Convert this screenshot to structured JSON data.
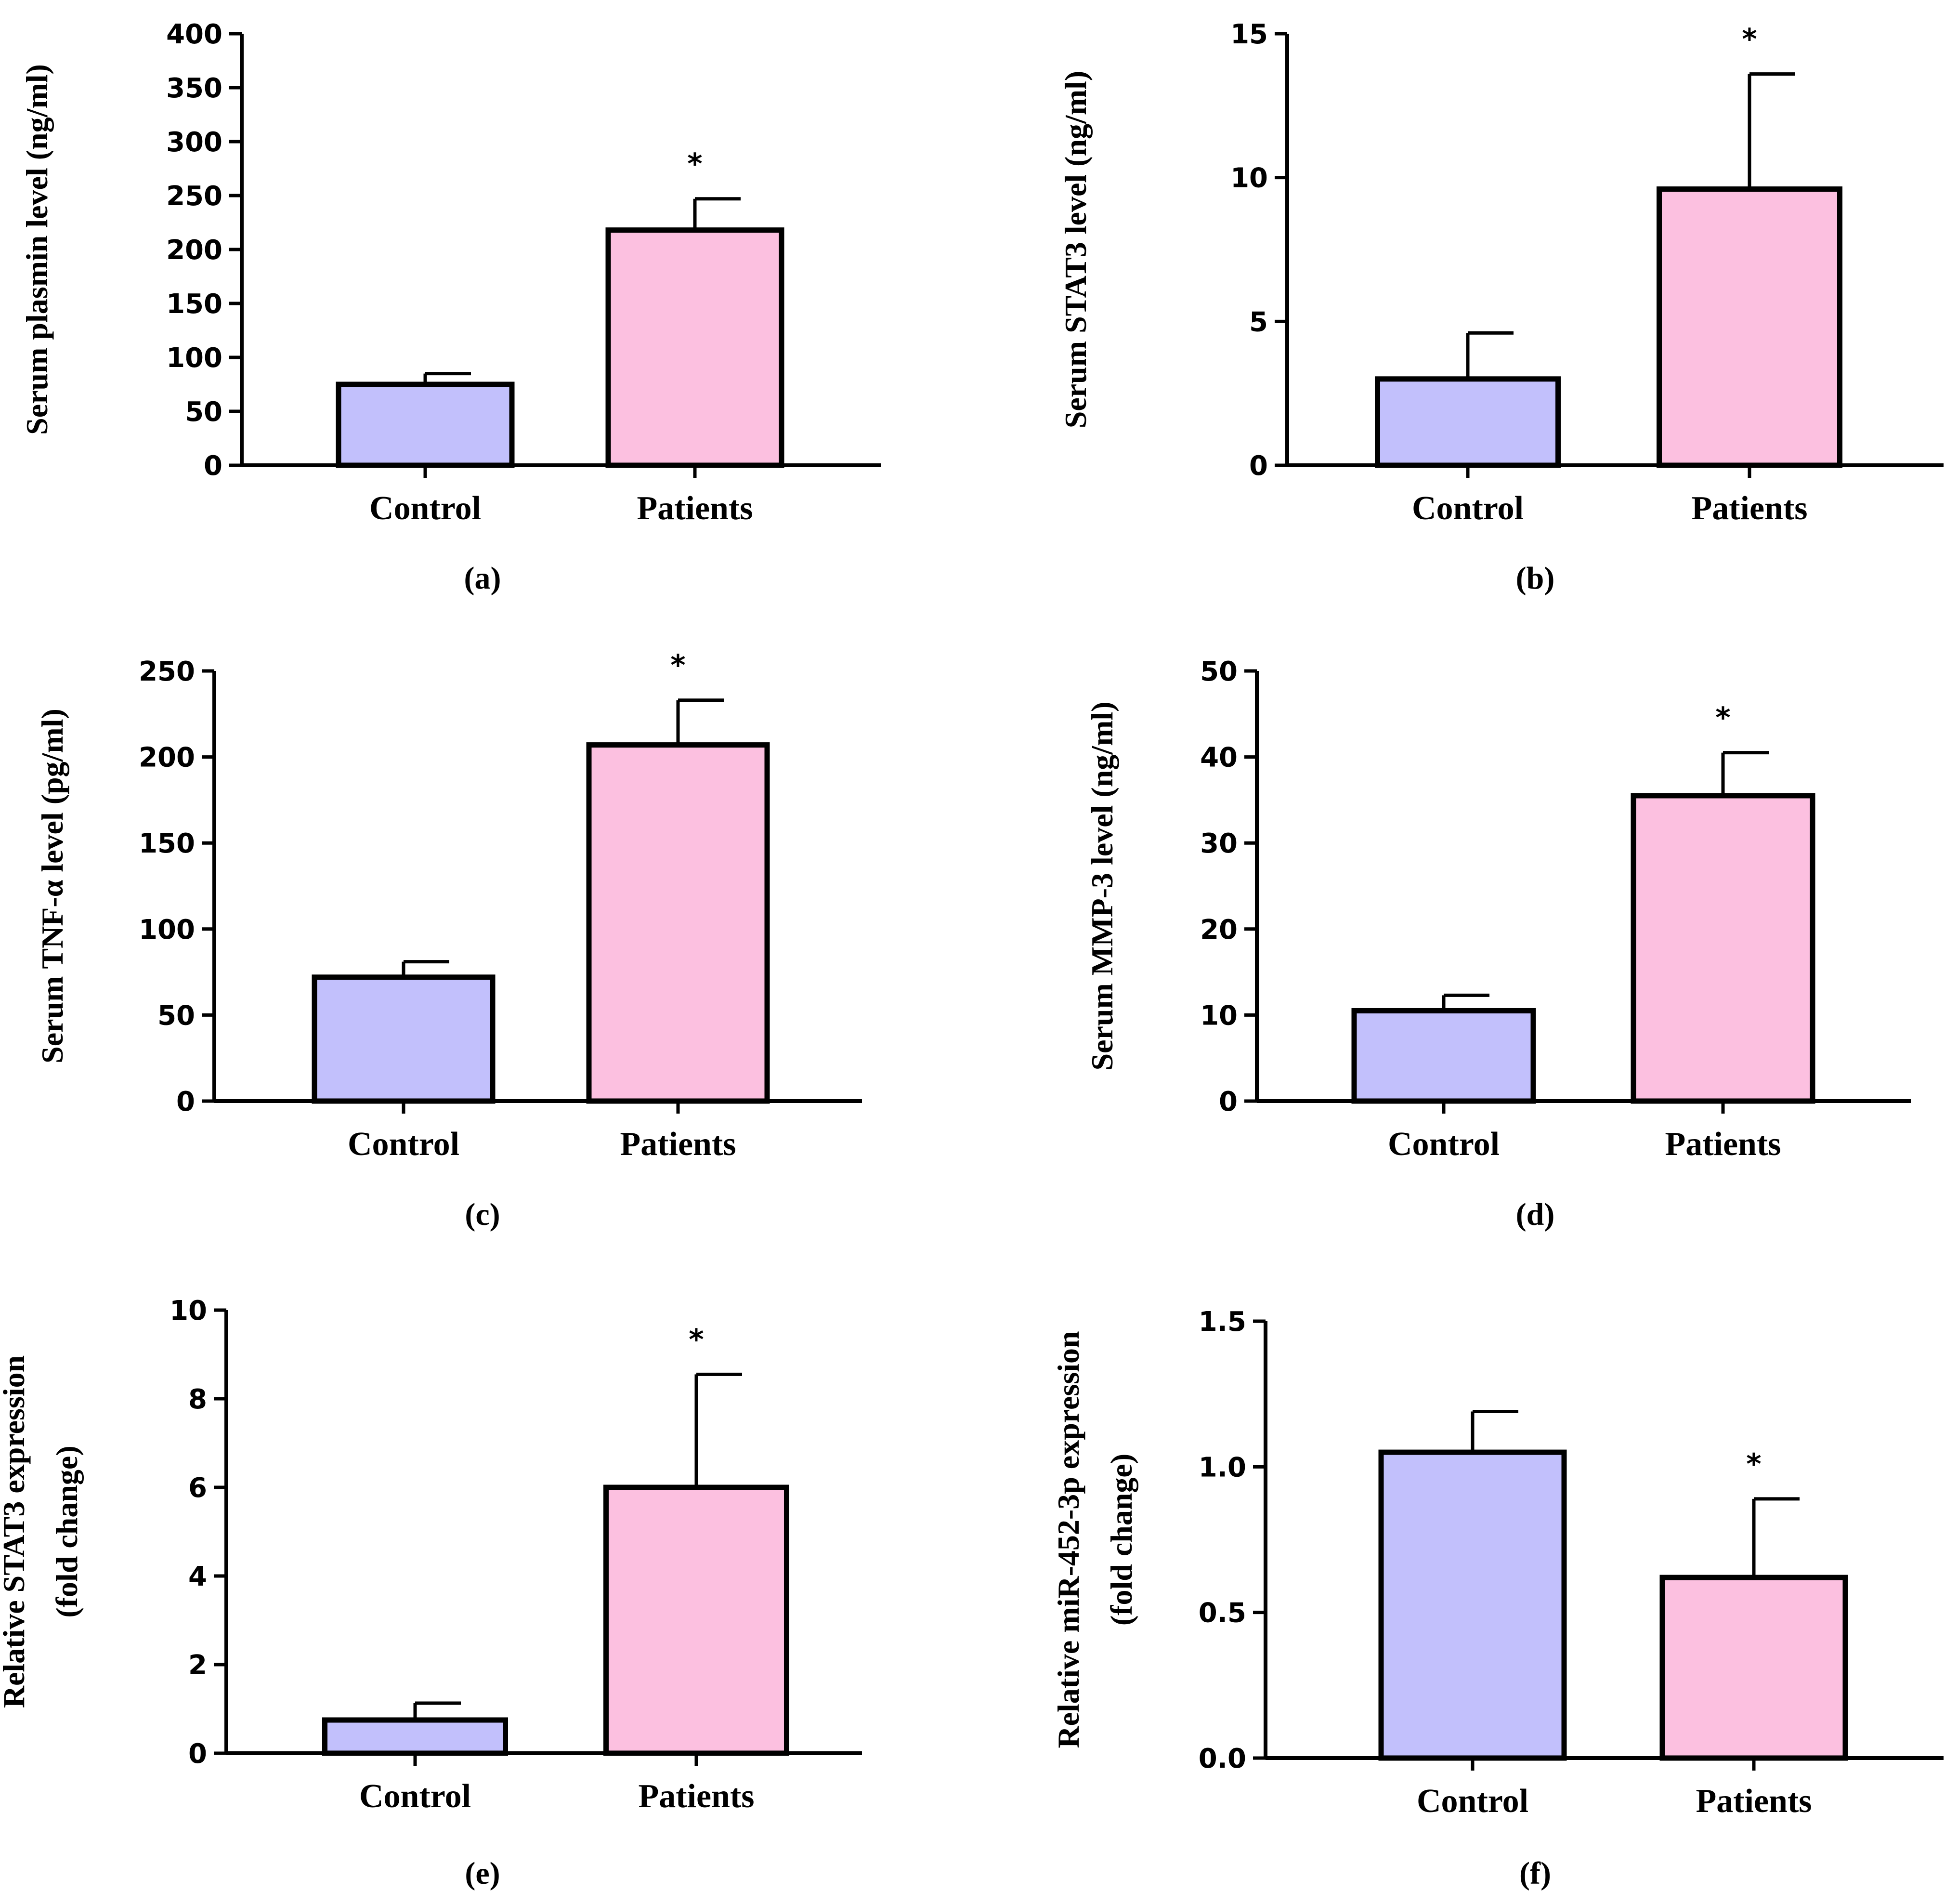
{
  "chart_data": [
    {
      "type": "bar",
      "panel_label": "(a)",
      "categories": [
        "Control",
        "Patients"
      ],
      "values": [
        75,
        218
      ],
      "error_plus": [
        10,
        29
      ],
      "significance": [
        "",
        "*"
      ],
      "colors": [
        "#c2c0fc",
        "#fcc0e0"
      ],
      "ylabel_lines": [
        "Serum plasmin level (ng/ml)"
      ],
      "ylim": [
        0,
        400
      ],
      "yticks": [
        0,
        50,
        100,
        150,
        200,
        250,
        300,
        350,
        400
      ],
      "ytick_labels": [
        "0",
        "50",
        "100",
        "150",
        "200",
        "250",
        "300",
        "350",
        "400"
      ]
    },
    {
      "type": "bar",
      "panel_label": "(b)",
      "categories": [
        "Control",
        "Patients"
      ],
      "values": [
        3.0,
        9.6
      ],
      "error_plus": [
        1.6,
        4.0
      ],
      "significance": [
        "",
        "*"
      ],
      "colors": [
        "#c2c0fc",
        "#fcc0e0"
      ],
      "ylabel_lines": [
        "Serum STAT3 level (ng/ml)"
      ],
      "ylim": [
        0,
        15
      ],
      "yticks": [
        0,
        5,
        10,
        15
      ],
      "ytick_labels": [
        "0",
        "5",
        "10",
        "15"
      ]
    },
    {
      "type": "bar",
      "panel_label": "(c)",
      "categories": [
        "Control",
        "Patients"
      ],
      "values": [
        72,
        207
      ],
      "error_plus": [
        9,
        26
      ],
      "significance": [
        "",
        "*"
      ],
      "colors": [
        "#c2c0fc",
        "#fcc0e0"
      ],
      "ylabel_lines": [
        "Serum TNF-α level (pg/ml)"
      ],
      "ylim": [
        0,
        250
      ],
      "yticks": [
        0,
        50,
        100,
        150,
        200,
        250
      ],
      "ytick_labels": [
        "0",
        "50",
        "100",
        "150",
        "200",
        "250"
      ]
    },
    {
      "type": "bar",
      "panel_label": "(d)",
      "categories": [
        "Control",
        "Patients"
      ],
      "values": [
        10.5,
        35.5
      ],
      "error_plus": [
        1.8,
        5.0
      ],
      "significance": [
        "",
        "*"
      ],
      "colors": [
        "#c2c0fc",
        "#fcc0e0"
      ],
      "ylabel_lines": [
        "Serum MMP-3 level (ng/ml)"
      ],
      "ylim": [
        0,
        50
      ],
      "yticks": [
        0,
        10,
        20,
        30,
        40,
        50
      ],
      "ytick_labels": [
        "0",
        "10",
        "20",
        "30",
        "40",
        "50"
      ]
    },
    {
      "type": "bar",
      "panel_label": "(e)",
      "categories": [
        "Control",
        "Patients"
      ],
      "values": [
        0.75,
        6.0
      ],
      "error_plus": [
        0.38,
        2.55
      ],
      "significance": [
        "",
        "*"
      ],
      "colors": [
        "#c2c0fc",
        "#fcc0e0"
      ],
      "ylabel_lines": [
        "Relative STAT3 expression",
        "(fold change)"
      ],
      "ylim": [
        0,
        10
      ],
      "yticks": [
        0,
        2,
        4,
        6,
        8,
        10
      ],
      "ytick_labels": [
        "0",
        "2",
        "4",
        "6",
        "8",
        "10"
      ]
    },
    {
      "type": "bar",
      "panel_label": "(f)",
      "categories": [
        "Control",
        "Patients"
      ],
      "values": [
        1.05,
        0.62
      ],
      "error_plus": [
        0.14,
        0.27
      ],
      "significance": [
        "",
        "*"
      ],
      "colors": [
        "#c2c0fc",
        "#fcc0e0"
      ],
      "ylabel_lines": [
        "Relative miR-452-3p expression",
        "(fold change)"
      ],
      "ylim": [
        0,
        1.5
      ],
      "yticks": [
        0,
        0.5,
        1.0,
        1.5
      ],
      "ytick_labels": [
        "0.0",
        "0.5",
        "1.0",
        "1.5"
      ]
    }
  ]
}
